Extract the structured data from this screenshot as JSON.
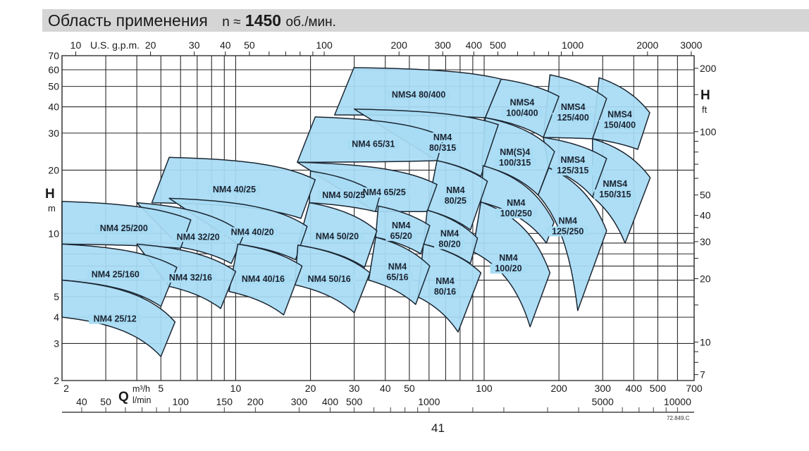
{
  "header": {
    "title": "Область применения",
    "rpm_prefix": "n ≈",
    "rpm_value": "1450",
    "rpm_unit": "об./мин."
  },
  "footer": {
    "page_number": "41",
    "drawing_code": "72.849.C"
  },
  "colors": {
    "region_fill": "#a8dcf4",
    "region_stroke": "#1c2733",
    "grid": "#2a2a2a",
    "title_bar": "#d5d5d5"
  },
  "chart_data": {
    "type": "area",
    "title": "Область применения n ≈ 1450 об./мин.",
    "x_scale": "log",
    "y_scale": "log",
    "xlim": [
      2,
      700
    ],
    "ylim": [
      2,
      70
    ],
    "grid": true,
    "x_axis_bottom": {
      "label": "Q",
      "unit": "m³/h",
      "tick_labels": [
        "2",
        "5",
        "10",
        "20",
        "30",
        "40",
        "50",
        "100",
        "200",
        "300",
        "400",
        "500",
        "700"
      ]
    },
    "x_axis_bottom_secondary": {
      "unit": "l/min",
      "tick_labels": [
        "40",
        "50",
        "100",
        "150",
        "200",
        "300",
        "400",
        "500",
        "1000",
        "5000",
        "10000"
      ],
      "minor_ticks": [
        40,
        50,
        60,
        70,
        80,
        90,
        100,
        150,
        200,
        300,
        400,
        500,
        600,
        700,
        800,
        900,
        1000,
        1500,
        2000,
        3000,
        4000,
        5000,
        6000,
        7000,
        8000,
        9000,
        10000
      ]
    },
    "x_axis_top": {
      "unit": "U.S. g.p.m.",
      "tick_labels": [
        "10",
        "20",
        "30",
        "40",
        "50",
        "100",
        "200",
        "300",
        "400",
        "500",
        "1000",
        "2000",
        "3000"
      ],
      "minor_ticks": [
        10,
        20,
        30,
        40,
        50,
        60,
        70,
        80,
        90,
        100,
        200,
        300,
        400,
        500,
        600,
        700,
        800,
        900,
        1000,
        2000,
        3000
      ]
    },
    "y_axis_left": {
      "label": "H",
      "unit": "m",
      "tick_labels": [
        "2",
        "3",
        "4",
        "5",
        "10",
        "20",
        "30",
        "40",
        "50",
        "60",
        "70"
      ]
    },
    "y_axis_right": {
      "label": "H",
      "unit": "ft",
      "tick_labels": [
        "7",
        "10",
        "20",
        "30",
        "40",
        "50",
        "100",
        "200"
      ],
      "minor_ticks": [
        7,
        8,
        9,
        10,
        15,
        20,
        25,
        30,
        35,
        40,
        50,
        60,
        70,
        80,
        90,
        100,
        150,
        200
      ]
    },
    "grid_x": [
      2,
      3,
      4,
      5,
      6,
      7,
      8,
      9,
      10,
      20,
      30,
      40,
      50,
      60,
      70,
      80,
      90,
      100,
      200,
      300,
      400,
      500,
      600,
      700
    ],
    "grid_y": [
      2,
      3,
      4,
      5,
      6,
      7,
      8,
      9,
      10,
      20,
      30,
      40,
      50,
      60,
      70
    ],
    "regions": [
      {
        "label": [
          "NMS4",
          "150/400"
        ],
        "tl": [
          290,
          55
        ],
        "tr": [
          464,
          37.5
        ],
        "br": [
          415,
          25.1
        ],
        "bl": [
          273,
          28.2
        ]
      },
      {
        "label": [
          "NMS4",
          "125/400"
        ],
        "tl": [
          184,
          56.8
        ],
        "tr": [
          311,
          43.8
        ],
        "br": [
          273,
          28.2
        ],
        "bl": [
          173,
          28.6
        ]
      },
      {
        "label": [
          "NMS4",
          "100/400"
        ],
        "tl": [
          117,
          54.2
        ],
        "tr": [
          200,
          44.8
        ],
        "br": [
          173,
          28.6
        ],
        "bl": [
          101,
          35.5
        ]
      },
      {
        "label": [
          "NMS4 80/400"
        ],
        "tl": [
          29.9,
          61.4
        ],
        "tr": [
          117,
          54.2
        ],
        "br": [
          101,
          35.5
        ],
        "bl": [
          25,
          36.6
        ]
      },
      {
        "label": [
          "NMS4",
          "150/315"
        ],
        "tl": [
          273,
          28.2
        ],
        "tr": [
          466,
          18.4
        ],
        "br": [
          369,
          9.0
        ],
        "bl": [
          273,
          14.9
        ]
      },
      {
        "label": [
          "NMS4",
          "125/315"
        ],
        "tl": [
          173,
          28.6
        ],
        "tr": [
          311,
          22.7
        ],
        "br": [
          273,
          14.9
        ],
        "bl": [
          182,
          20.5
        ]
      },
      {
        "label": [
          "NM(S)4",
          "100/315"
        ],
        "tl": [
          101,
          35.5
        ],
        "tr": [
          192,
          24.5
        ],
        "br": [
          165,
          15.2
        ],
        "bl": [
          98,
          21.0
        ]
      },
      {
        "label": [
          "NM4",
          "80/315"
        ],
        "tl": [
          30,
          39
        ],
        "tr": [
          114,
          32.9
        ],
        "br": [
          97,
          18.7
        ],
        "bl": [
          64.6,
          22.2
        ]
      },
      {
        "label": [
          "NM4 65/31"
        ],
        "tl": [
          20.9,
          35.8
        ],
        "tr": [
          68.8,
          28.8
        ],
        "br": [
          64.6,
          22.2
        ],
        "bl": [
          17.7,
          21.8
        ]
      },
      {
        "label": [
          "NM4",
          "125/250"
        ],
        "tl": [
          182,
          20.5
        ],
        "tr": [
          311,
          10.3
        ],
        "br": [
          238,
          4.3
        ],
        "bl": [
          165,
          15.2
        ]
      },
      {
        "label": [
          "NM4",
          "100/250"
        ],
        "tl": [
          99,
          21.0
        ],
        "tr": [
          191,
          11.3
        ],
        "br": [
          178,
          9.0
        ],
        "bl": [
          97,
          14.1
        ]
      },
      {
        "label": [
          "NM4",
          "80/25"
        ],
        "tl": [
          64.6,
          22.2
        ],
        "tr": [
          103,
          17.7
        ],
        "br": [
          88,
          10.4
        ],
        "bl": [
          59,
          12.9
        ]
      },
      {
        "label": [
          "NM4 65/25"
        ],
        "tl": [
          17.7,
          21.8
        ],
        "tr": [
          64.6,
          17.1
        ],
        "br": [
          59,
          12.7
        ],
        "bl": [
          36.5,
          12.7
        ]
      },
      {
        "label": [
          "NM4 50/25"
        ],
        "tl": [
          20,
          19.8
        ],
        "tr": [
          38,
          15.1
        ],
        "br": [
          36.5,
          12.7
        ],
        "bl": [
          19.8,
          14.0
        ]
      },
      {
        "label": [
          "NM4 40/25"
        ],
        "tl": [
          5.4,
          23.0
        ],
        "tr": [
          20.9,
          18.0
        ],
        "br": [
          18.3,
          11.8
        ],
        "bl": [
          4.6,
          14.0
        ]
      },
      {
        "label": [
          "NM4",
          "100/20"
        ],
        "tl": [
          97,
          14.1
        ],
        "tr": [
          184,
          6.5
        ],
        "br": [
          153,
          3.6
        ],
        "bl": [
          90,
          8.2
        ]
      },
      {
        "label": [
          "NM4",
          "80/20"
        ],
        "tl": [
          59,
          12.9
        ],
        "tr": [
          94,
          9.5
        ],
        "br": [
          88,
          7.2
        ],
        "bl": [
          57,
          8.9
        ]
      },
      {
        "label": [
          "NM4",
          "65/20"
        ],
        "tl": [
          37.5,
          13.5
        ],
        "tr": [
          60.4,
          10.9
        ],
        "br": [
          55.6,
          8.0
        ],
        "bl": [
          36.6,
          9.6
        ]
      },
      {
        "label": [
          "NM4 50/20"
        ],
        "tl": [
          19.8,
          14.0
        ],
        "tr": [
          37,
          10.3
        ],
        "br": [
          33,
          6.9
        ],
        "bl": [
          17.8,
          8.8
        ]
      },
      {
        "label": [
          "NM4 40/20"
        ],
        "tl": [
          5.4,
          14.7
        ],
        "tr": [
          19.4,
          10.8
        ],
        "br": [
          17.4,
          7.5
        ],
        "bl": [
          10.2,
          8.9
        ]
      },
      {
        "label": [
          "NM4 32/20"
        ],
        "tl": [
          4.0,
          14.0
        ],
        "tr": [
          10.8,
          9.9
        ],
        "br": [
          9.6,
          7.2
        ],
        "bl": [
          6.0,
          8.6
        ]
      },
      {
        "label": [
          "NM4 25/200"
        ],
        "tl": [
          2,
          14.2
        ],
        "tr": [
          6.6,
          11.6
        ],
        "br": [
          6.0,
          8.5
        ],
        "bl": [
          2,
          8.9
        ]
      },
      {
        "label": [
          "NM4",
          "80/16"
        ],
        "tl": [
          57,
          8.9
        ],
        "tr": [
          97,
          6.5
        ],
        "br": [
          78.5,
          3.4
        ],
        "bl": [
          54,
          5.0
        ]
      },
      {
        "label": [
          "NM4",
          "65/16"
        ],
        "tl": [
          36.6,
          9.6
        ],
        "tr": [
          60.4,
          7.0
        ],
        "br": [
          53,
          4.6
        ],
        "bl": [
          34.3,
          6.0
        ]
      },
      {
        "label": [
          "NM4 50/16"
        ],
        "tl": [
          17.8,
          8.8
        ],
        "tr": [
          34.7,
          6.5
        ],
        "br": [
          30,
          4.2
        ],
        "bl": [
          17.3,
          5.7
        ]
      },
      {
        "label": [
          "NM4 40/16"
        ],
        "tl": [
          10.2,
          8.9
        ],
        "tr": [
          18.5,
          7.0
        ],
        "br": [
          15.6,
          4.1
        ],
        "bl": [
          9.4,
          5.3
        ]
      },
      {
        "label": [
          "NM4 32/16"
        ],
        "tl": [
          4.0,
          8.9
        ],
        "tr": [
          10,
          6.6
        ],
        "br": [
          8.7,
          4.4
        ],
        "bl": [
          5.4,
          5.6
        ]
      },
      {
        "label": [
          "NM4 25/160"
        ],
        "tl": [
          2,
          8.9
        ],
        "tr": [
          5.8,
          6.9
        ],
        "br": [
          5.0,
          4.5
        ],
        "bl": [
          2,
          6.0
        ]
      },
      {
        "label": [
          "NM4 25/12"
        ],
        "tl": [
          2,
          6.0
        ],
        "tr": [
          5.7,
          3.8
        ],
        "br": [
          5.0,
          2.6
        ],
        "bl": [
          2,
          4.0
        ]
      }
    ]
  }
}
